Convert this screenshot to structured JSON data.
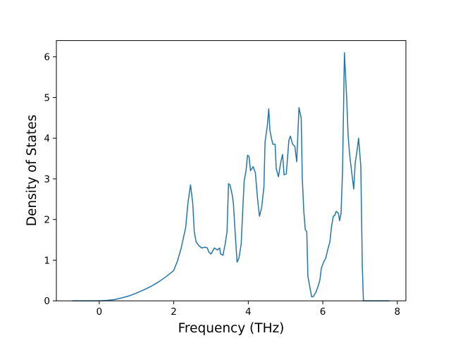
{
  "chart_data": {
    "type": "line",
    "xlabel": "Frequency (THz)",
    "ylabel": "Density of States",
    "x": [
      -0.72,
      0,
      0.2,
      0.4,
      0.6,
      0.8,
      1.0,
      1.2,
      1.4,
      1.6,
      1.8,
      1.9,
      2.0,
      2.1,
      2.2,
      2.32,
      2.38,
      2.45,
      2.51,
      2.55,
      2.6,
      2.68,
      2.75,
      2.85,
      2.9,
      2.94,
      3.0,
      3.09,
      3.17,
      3.23,
      3.26,
      3.32,
      3.38,
      3.43,
      3.47,
      3.51,
      3.57,
      3.6,
      3.66,
      3.7,
      3.75,
      3.81,
      3.85,
      3.89,
      3.94,
      3.98,
      4.02,
      4.06,
      4.13,
      4.19,
      4.25,
      4.3,
      4.36,
      4.42,
      4.45,
      4.51,
      4.55,
      4.58,
      4.62,
      4.66,
      4.72,
      4.75,
      4.81,
      4.87,
      4.92,
      4.96,
      5.02,
      5.06,
      5.09,
      5.13,
      5.19,
      5.25,
      5.3,
      5.36,
      5.42,
      5.45,
      5.49,
      5.53,
      5.57,
      5.6,
      5.66,
      5.7,
      5.74,
      5.81,
      5.87,
      5.92,
      5.96,
      6.02,
      6.08,
      6.13,
      6.19,
      6.23,
      6.28,
      6.32,
      6.36,
      6.42,
      6.45,
      6.49,
      6.53,
      6.58,
      6.64,
      6.68,
      6.72,
      6.77,
      6.83,
      6.87,
      6.92,
      6.96,
      7.02,
      7.06,
      7.09,
      7.79
    ],
    "values": [
      0,
      0,
      0.01,
      0.03,
      0.07,
      0.12,
      0.19,
      0.27,
      0.36,
      0.47,
      0.6,
      0.67,
      0.75,
      0.98,
      1.3,
      1.8,
      2.4,
      2.85,
      2.4,
      1.7,
      1.45,
      1.35,
      1.3,
      1.32,
      1.3,
      1.2,
      1.15,
      1.3,
      1.25,
      1.3,
      1.15,
      1.12,
      1.4,
      1.7,
      2.88,
      2.85,
      2.6,
      2.4,
      1.5,
      0.95,
      1.05,
      1.4,
      2.2,
      2.95,
      3.2,
      3.58,
      3.55,
      3.2,
      3.3,
      3.15,
      2.5,
      2.08,
      2.3,
      2.8,
      3.9,
      4.3,
      4.72,
      4.2,
      4.0,
      3.85,
      3.85,
      3.25,
      3.05,
      3.4,
      3.6,
      3.1,
      3.12,
      3.6,
      3.95,
      4.05,
      3.85,
      3.8,
      3.42,
      4.75,
      4.5,
      3.0,
      2.2,
      1.75,
      1.7,
      0.6,
      0.3,
      0.1,
      0.1,
      0.2,
      0.35,
      0.5,
      0.8,
      0.95,
      1.05,
      1.25,
      1.45,
      1.8,
      2.08,
      2.1,
      2.2,
      2.15,
      1.97,
      2.15,
      3.2,
      6.1,
      5.0,
      4.05,
      3.6,
      3.2,
      2.75,
      3.4,
      3.7,
      4.0,
      3.3,
      0.85,
      0,
      0
    ],
    "color": "#1f77b4",
    "xlim": [
      -1.15,
      8.23
    ],
    "xticks": [
      0,
      2,
      4,
      6,
      8
    ],
    "ylim": [
      0,
      6.4
    ],
    "yticks": [
      0,
      1,
      2,
      3,
      4,
      5,
      6
    ]
  }
}
